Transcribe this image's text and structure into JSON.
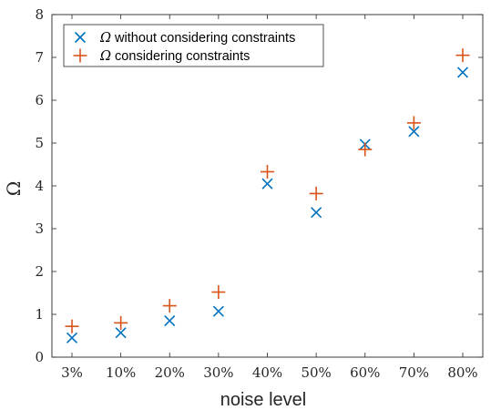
{
  "chart_data": {
    "type": "scatter",
    "categories": [
      "3%",
      "10%",
      "20%",
      "30%",
      "40%",
      "50%",
      "60%",
      "70%",
      "80%"
    ],
    "x": [
      3,
      10,
      20,
      30,
      40,
      50,
      60,
      70,
      80
    ],
    "series": [
      {
        "name": "Ω without considering constraints",
        "marker": "x",
        "color": "#0072BD",
        "values": [
          0.45,
          0.57,
          0.85,
          1.07,
          4.05,
          3.38,
          4.97,
          5.27,
          6.65
        ]
      },
      {
        "name": "Ω considering constraints",
        "marker": "+",
        "color": "#D95319",
        "values": [
          0.72,
          0.8,
          1.2,
          1.52,
          4.33,
          3.82,
          4.85,
          5.47,
          7.05
        ]
      }
    ],
    "xlabel": "noise level",
    "ylabel": "Ω",
    "ylim": [
      0,
      8
    ],
    "yticks": [
      0,
      1,
      2,
      3,
      4,
      5,
      6,
      7,
      8
    ],
    "grid": false,
    "legend_position": "top-left"
  }
}
